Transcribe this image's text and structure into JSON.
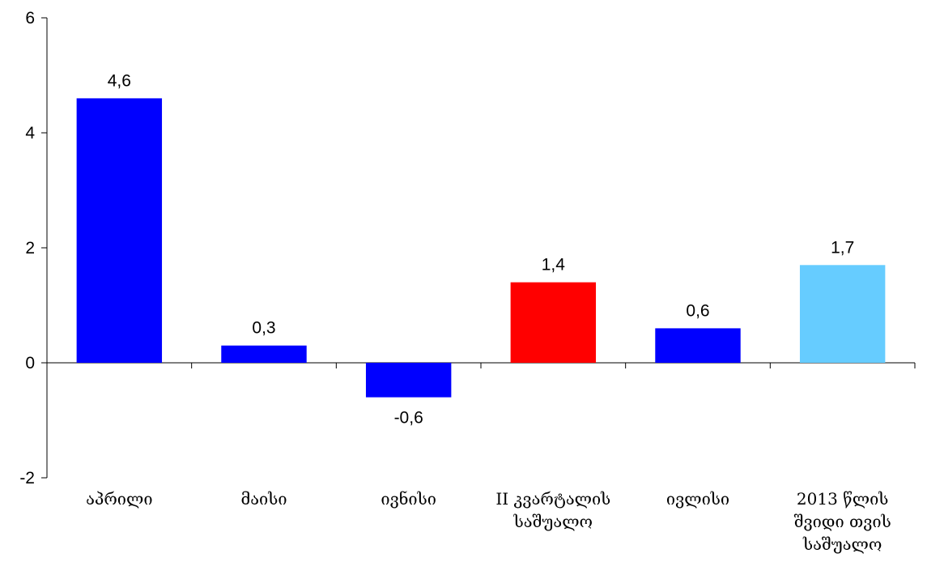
{
  "chart_data": {
    "type": "bar",
    "title": "",
    "xlabel": "",
    "ylabel": "",
    "ylim": [
      -2,
      6
    ],
    "yticks": [
      -2,
      0,
      2,
      4,
      6
    ],
    "ytick_labels": [
      "-2",
      "0",
      "2",
      "4",
      "6"
    ],
    "categories": [
      [
        "აპრილი"
      ],
      [
        "მაისი"
      ],
      [
        "ივნისი"
      ],
      [
        "II კვარტალის",
        "საშუალო"
      ],
      [
        "ივლისი"
      ],
      [
        "2013 წლის",
        "შვიდი თვის",
        "საშუალო"
      ]
    ],
    "values": [
      4.6,
      0.3,
      -0.6,
      1.4,
      0.6,
      1.7
    ],
    "value_labels": [
      "4,6",
      "0,3",
      "-0,6",
      "1,4",
      "0,6",
      "1,7"
    ],
    "colors": [
      "#0000ff",
      "#0000ff",
      "#0000ff",
      "#ff0000",
      "#0000ff",
      "#66ccff"
    ],
    "grid": false,
    "legend": "none"
  }
}
